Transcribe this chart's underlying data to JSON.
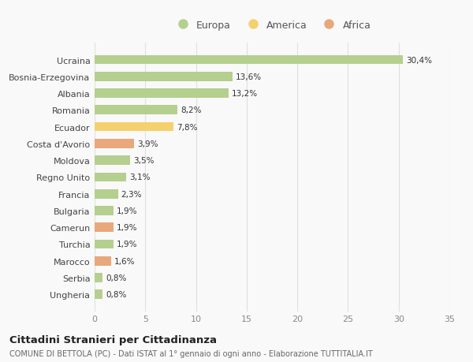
{
  "countries": [
    "Ucraina",
    "Bosnia-Erzegovina",
    "Albania",
    "Romania",
    "Ecuador",
    "Costa d'Avorio",
    "Moldova",
    "Regno Unito",
    "Francia",
    "Bulgaria",
    "Camerun",
    "Turchia",
    "Marocco",
    "Serbia",
    "Ungheria"
  ],
  "values": [
    30.4,
    13.6,
    13.2,
    8.2,
    7.8,
    3.9,
    3.5,
    3.1,
    2.3,
    1.9,
    1.9,
    1.9,
    1.6,
    0.8,
    0.8
  ],
  "labels": [
    "30,4%",
    "13,6%",
    "13,2%",
    "8,2%",
    "7,8%",
    "3,9%",
    "3,5%",
    "3,1%",
    "2,3%",
    "1,9%",
    "1,9%",
    "1,9%",
    "1,6%",
    "0,8%",
    "0,8%"
  ],
  "categories": [
    "Europa",
    "Europa",
    "Europa",
    "Europa",
    "America",
    "Africa",
    "Europa",
    "Europa",
    "Europa",
    "Europa",
    "Africa",
    "Europa",
    "Africa",
    "Europa",
    "Europa"
  ],
  "colors": {
    "Europa": "#b5cf8f",
    "America": "#f5d06e",
    "Africa": "#e8a87c"
  },
  "legend_colors": {
    "Europa": "#b5cf8f",
    "America": "#f5d06e",
    "Africa": "#e8a87c"
  },
  "xlim": [
    0,
    35
  ],
  "xticks": [
    0,
    5,
    10,
    15,
    20,
    25,
    30,
    35
  ],
  "title": "Cittadini Stranieri per Cittadinanza",
  "subtitle": "COMUNE DI BETTOLA (PC) - Dati ISTAT al 1° gennaio di ogni anno - Elaborazione TUTTITALIA.IT",
  "background_color": "#f9f9f9",
  "plot_bg_color": "#f9f9f9",
  "grid_color": "#e0e0e0",
  "text_color": "#555555"
}
